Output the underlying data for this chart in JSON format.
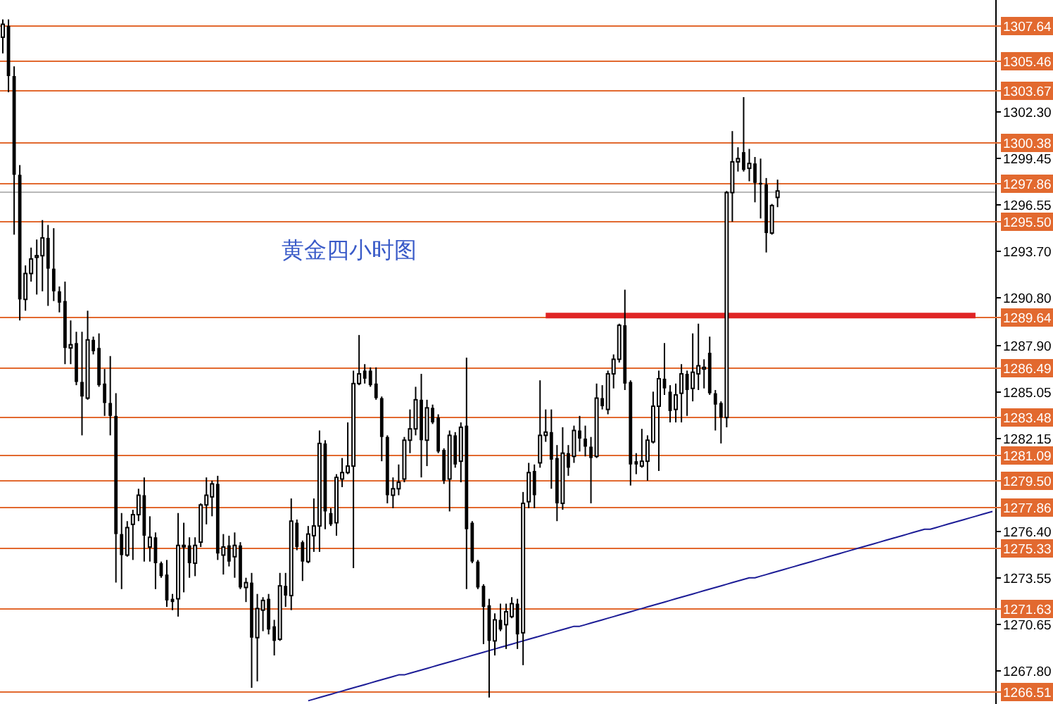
{
  "chart_data": {
    "type": "candlestick",
    "title": "黄金四小时图",
    "categories": [
      null,
      null,
      null,
      null,
      null,
      null,
      null,
      null,
      null,
      null,
      null,
      null,
      null,
      null,
      null,
      null,
      null,
      null,
      null,
      null,
      null,
      null,
      null,
      null,
      null,
      null,
      null,
      null,
      null,
      null,
      null,
      null,
      null,
      null,
      null,
      null,
      null,
      null,
      null,
      null,
      null,
      null,
      null,
      null,
      null,
      null,
      null,
      null,
      null,
      null,
      null,
      null,
      null,
      null,
      null,
      null,
      null,
      null,
      null,
      null,
      null,
      null,
      null,
      null,
      null,
      null,
      null,
      null,
      null,
      null,
      null,
      null,
      null,
      null,
      null,
      null,
      null,
      null,
      null,
      null,
      null,
      null,
      null,
      null,
      null,
      null,
      null,
      null,
      null,
      null,
      null,
      null,
      null,
      null,
      null,
      null,
      null,
      null,
      null,
      null,
      null,
      null,
      null,
      null,
      null,
      null,
      null,
      null,
      null,
      null,
      null,
      null,
      null,
      null,
      null,
      null,
      null,
      null,
      null,
      null,
      null,
      null,
      null,
      null,
      null,
      null,
      null,
      null,
      null,
      null,
      null,
      null,
      null,
      null,
      null,
      null,
      null,
      null,
      null,
      null,
      null,
      null,
      null,
      null,
      null,
      null,
      null,
      null,
      null,
      null,
      null,
      null,
      null,
      null,
      null,
      null,
      null,
      null,
      null,
      null,
      null,
      null,
      null,
      null,
      null,
      null,
      null,
      null,
      null,
      null,
      null,
      null,
      null,
      null,
      null,
      null
    ],
    "ohlc": [
      [
        1306.9,
        1308.0,
        1305.9,
        1307.7
      ],
      [
        1307.6,
        1308.0,
        1303.5,
        1304.5
      ],
      [
        1304.5,
        1305.1,
        1294.7,
        1298.4
      ],
      [
        1298.4,
        1299.0,
        1289.4,
        1290.7
      ],
      [
        1290.7,
        1292.8,
        1290.0,
        1292.3
      ],
      [
        1292.3,
        1293.9,
        1291.8,
        1293.2
      ],
      [
        1293.3,
        1294.4,
        1291.0,
        1293.4
      ],
      [
        1293.4,
        1295.6,
        1291.2,
        1294.5
      ],
      [
        1294.5,
        1295.3,
        1290.3,
        1292.6
      ],
      [
        1292.6,
        1295.1,
        1290.6,
        1291.2
      ],
      [
        1291.2,
        1291.5,
        1289.9,
        1290.5
      ],
      [
        1290.6,
        1291.8,
        1286.7,
        1287.7
      ],
      [
        1287.7,
        1289.4,
        1286.7,
        1287.9
      ],
      [
        1288.0,
        1288.7,
        1285.4,
        1285.6
      ],
      [
        1285.6,
        1288.7,
        1282.3,
        1284.7
      ],
      [
        1284.6,
        1290.0,
        1284.5,
        1288.2
      ],
      [
        1288.2,
        1288.4,
        1287.3,
        1287.5
      ],
      [
        1287.7,
        1288.6,
        1285.3,
        1285.4
      ],
      [
        1285.5,
        1286.4,
        1283.5,
        1284.3
      ],
      [
        1284.3,
        1287.2,
        1282.3,
        1283.5
      ],
      [
        1283.5,
        1284.9,
        1273.2,
        1276.2
      ],
      [
        1276.2,
        1277.5,
        1272.8,
        1274.9
      ],
      [
        1274.9,
        1277.0,
        1274.8,
        1276.6
      ],
      [
        1276.8,
        1277.7,
        1274.6,
        1277.4
      ],
      [
        1277.4,
        1279.0,
        1277.0,
        1278.6
      ],
      [
        1278.6,
        1279.7,
        1274.5,
        1276.1
      ],
      [
        1275.4,
        1277.3,
        1274.5,
        1276.0
      ],
      [
        1276.0,
        1276.3,
        1272.8,
        1274.4
      ],
      [
        1274.4,
        1274.5,
        1273.5,
        1273.6
      ],
      [
        1273.7,
        1274.6,
        1271.7,
        1272.1
      ],
      [
        1272.2,
        1272.5,
        1271.5,
        1272.0
      ],
      [
        1272.2,
        1277.5,
        1271.1,
        1275.5
      ],
      [
        1275.5,
        1276.9,
        1272.6,
        1275.5
      ],
      [
        1275.5,
        1276.0,
        1273.5,
        1274.4
      ],
      [
        1274.4,
        1276.0,
        1273.6,
        1275.5
      ],
      [
        1275.7,
        1278.1,
        1275.4,
        1278.0
      ],
      [
        1278.0,
        1279.7,
        1276.8,
        1278.6
      ],
      [
        1278.5,
        1279.5,
        1277.3,
        1279.3
      ],
      [
        1279.3,
        1279.8,
        1274.6,
        1275.0
      ],
      [
        1274.9,
        1276.2,
        1273.7,
        1275.4
      ],
      [
        1275.5,
        1276.1,
        1274.2,
        1274.5
      ],
      [
        1274.8,
        1276.3,
        1273.5,
        1275.5
      ],
      [
        1275.5,
        1275.7,
        1272.8,
        1272.9
      ],
      [
        1272.9,
        1273.5,
        1272.0,
        1273.2
      ],
      [
        1273.2,
        1273.8,
        1266.7,
        1269.8
      ],
      [
        1269.8,
        1272.5,
        1267.1,
        1271.6
      ],
      [
        1271.5,
        1272.3,
        1270.2,
        1272.1
      ],
      [
        1272.2,
        1272.5,
        1270.0,
        1270.3
      ],
      [
        1270.5,
        1270.9,
        1268.7,
        1269.6
      ],
      [
        1269.7,
        1273.8,
        1269.6,
        1273.0
      ],
      [
        1273.0,
        1273.8,
        1271.7,
        1272.4
      ],
      [
        1272.4,
        1278.4,
        1271.5,
        1277.0
      ],
      [
        1276.9,
        1277.1,
        1275.2,
        1275.4
      ],
      [
        1275.7,
        1275.8,
        1273.3,
        1274.5
      ],
      [
        1274.5,
        1276.7,
        1274.4,
        1276.2
      ],
      [
        1276.1,
        1278.4,
        1275.1,
        1276.7
      ],
      [
        1276.7,
        1282.6,
        1275.1,
        1281.8
      ],
      [
        1281.8,
        1282.0,
        1276.5,
        1277.6
      ],
      [
        1277.5,
        1277.8,
        1276.7,
        1276.8
      ],
      [
        1276.9,
        1279.9,
        1276.1,
        1279.7
      ],
      [
        1279.6,
        1280.9,
        1279.1,
        1280.0
      ],
      [
        1280.0,
        1283.1,
        1279.9,
        1280.4
      ],
      [
        1280.4,
        1286.3,
        1274.1,
        1285.5
      ],
      [
        1285.5,
        1288.5,
        1285.4,
        1286.1
      ],
      [
        1286.3,
        1286.7,
        1285.5,
        1285.8
      ],
      [
        1286.3,
        1286.5,
        1285.3,
        1285.4
      ],
      [
        1285.5,
        1286.5,
        1284.5,
        1284.6
      ],
      [
        1284.6,
        1284.7,
        1280.7,
        1282.2
      ],
      [
        1282.2,
        1282.3,
        1278.1,
        1278.6
      ],
      [
        1278.6,
        1279.7,
        1277.8,
        1279.0
      ],
      [
        1279.0,
        1280.5,
        1278.6,
        1279.4
      ],
      [
        1279.6,
        1282.2,
        1279.4,
        1282.0
      ],
      [
        1282.0,
        1283.9,
        1281.2,
        1282.7
      ],
      [
        1282.7,
        1285.3,
        1282.3,
        1284.5
      ],
      [
        1284.5,
        1286.1,
        1279.7,
        1282.0
      ],
      [
        1282.0,
        1284.5,
        1280.4,
        1284.0
      ],
      [
        1284.0,
        1284.2,
        1283.0,
        1283.1
      ],
      [
        1283.4,
        1283.6,
        1281.2,
        1281.3
      ],
      [
        1281.4,
        1281.5,
        1279.3,
        1279.5
      ],
      [
        1279.6,
        1282.6,
        1277.6,
        1282.3
      ],
      [
        1282.3,
        1282.5,
        1280.3,
        1280.5
      ],
      [
        1280.7,
        1283.1,
        1279.4,
        1282.8
      ],
      [
        1282.9,
        1287.1,
        1272.8,
        1276.5
      ],
      [
        1276.9,
        1277.0,
        1274.4,
        1274.5
      ],
      [
        1274.5,
        1274.6,
        1272.8,
        1272.9
      ],
      [
        1273.0,
        1273.1,
        1269.4,
        1271.7
      ],
      [
        1271.8,
        1272.2,
        1266.1,
        1269.6
      ],
      [
        1269.6,
        1271.3,
        1268.7,
        1270.9
      ],
      [
        1270.9,
        1271.9,
        1270.2,
        1270.3
      ],
      [
        1270.6,
        1271.9,
        1269.1,
        1271.4
      ],
      [
        1271.1,
        1272.3,
        1271.0,
        1271.9
      ],
      [
        1271.9,
        1272.2,
        1269.1,
        1270.0
      ],
      [
        1270.1,
        1278.8,
        1268.1,
        1278.1
      ],
      [
        1278.2,
        1280.6,
        1277.8,
        1280.0
      ],
      [
        1280.1,
        1280.5,
        1277.8,
        1278.6
      ],
      [
        1280.6,
        1285.7,
        1280.3,
        1282.3
      ],
      [
        1282.3,
        1283.9,
        1281.9,
        1282.5
      ],
      [
        1282.5,
        1283.9,
        1279.0,
        1280.8
      ],
      [
        1280.9,
        1281.7,
        1277.0,
        1278.1
      ],
      [
        1278.1,
        1282.8,
        1277.7,
        1281.2
      ],
      [
        1281.2,
        1281.7,
        1279.8,
        1280.3
      ],
      [
        1281.0,
        1282.9,
        1280.6,
        1282.6
      ],
      [
        1282.6,
        1283.5,
        1281.3,
        1282.1
      ],
      [
        1282.1,
        1282.9,
        1281.0,
        1281.6
      ],
      [
        1281.6,
        1282.2,
        1278.1,
        1280.9
      ],
      [
        1281.0,
        1285.5,
        1280.9,
        1284.6
      ],
      [
        1284.6,
        1285.4,
        1283.9,
        1284.1
      ],
      [
        1283.9,
        1286.3,
        1283.6,
        1286.1
      ],
      [
        1286.1,
        1287.3,
        1285.2,
        1287.0
      ],
      [
        1287.0,
        1289.2,
        1286.8,
        1289.1
      ],
      [
        1289.1,
        1291.3,
        1285.1,
        1285.5
      ],
      [
        1285.6,
        1285.7,
        1279.2,
        1280.5
      ],
      [
        1280.7,
        1281.2,
        1279.9,
        1280.5
      ],
      [
        1280.4,
        1282.7,
        1280.3,
        1280.7
      ],
      [
        1280.7,
        1282.3,
        1279.5,
        1282.0
      ],
      [
        1281.9,
        1285.0,
        1281.8,
        1284.1
      ],
      [
        1284.1,
        1286.3,
        1280.1,
        1285.8
      ],
      [
        1285.8,
        1288.0,
        1284.8,
        1285.2
      ],
      [
        1285.0,
        1285.4,
        1283.1,
        1283.8
      ],
      [
        1283.9,
        1285.5,
        1283.1,
        1284.8
      ],
      [
        1284.9,
        1286.7,
        1283.1,
        1286.1
      ],
      [
        1286.1,
        1286.3,
        1283.5,
        1285.1
      ],
      [
        1285.2,
        1288.6,
        1284.4,
        1286.2
      ],
      [
        1286.1,
        1289.2,
        1285.1,
        1286.6
      ],
      [
        1286.4,
        1287.0,
        1285.2,
        1286.5
      ],
      [
        1287.4,
        1288.4,
        1284.8,
        1284.9
      ],
      [
        1284.9,
        1285.1,
        1282.6,
        1284.2
      ],
      [
        1284.3,
        1284.4,
        1281.8,
        1283.4
      ],
      [
        1283.4,
        1297.4,
        1282.8,
        1297.3
      ],
      [
        1297.3,
        1301.1,
        1295.5,
        1299.2
      ],
      [
        1299.2,
        1300.1,
        1298.6,
        1299.4
      ],
      [
        1299.8,
        1303.2,
        1298.6,
        1298.7
      ],
      [
        1298.8,
        1300.0,
        1298.0,
        1299.1
      ],
      [
        1299.1,
        1299.5,
        1296.7,
        1297.9
      ],
      [
        1297.9,
        1299.4,
        1295.7,
        1297.8
      ],
      [
        1297.8,
        1298.2,
        1293.6,
        1294.8
      ],
      [
        1294.8,
        1296.6,
        1294.7,
        1296.5
      ],
      [
        1297.0,
        1298.1,
        1296.4,
        1297.4
      ],
      null,
      null,
      null,
      null,
      null,
      null,
      null,
      null,
      null,
      null,
      null,
      null,
      null,
      null,
      null,
      null,
      null,
      null,
      null,
      null,
      null,
      null,
      null,
      null,
      null,
      null,
      null,
      null,
      null,
      null,
      null,
      null,
      null,
      null,
      null,
      null,
      null,
      null
    ],
    "ylim": [
      1265.7,
      1309.2
    ],
    "yticks": [
      {
        "value": 1302.3,
        "label": "1302.30"
      },
      {
        "value": 1299.45,
        "label": "1299.45"
      },
      {
        "value": 1296.55,
        "label": "1296.55"
      },
      {
        "value": 1293.7,
        "label": "1293.70"
      },
      {
        "value": 1290.8,
        "label": "1290.80"
      },
      {
        "value": 1287.9,
        "label": "1287.90"
      },
      {
        "value": 1285.05,
        "label": "1285.05"
      },
      {
        "value": 1282.15,
        "label": "1282.15"
      },
      {
        "value": 1276.4,
        "label": "1276.40"
      },
      {
        "value": 1273.55,
        "label": "1273.55"
      },
      {
        "value": 1270.65,
        "label": "1270.65"
      },
      {
        "value": 1267.8,
        "label": "1267.80"
      }
    ],
    "tick_labels": "y",
    "ref_lines": [
      {
        "axis": "y",
        "value": 1307.64,
        "label": "1307.64",
        "color": "#e2692f"
      },
      {
        "axis": "y",
        "value": 1305.46,
        "label": "1305.46",
        "color": "#e2692f"
      },
      {
        "axis": "y",
        "value": 1303.67,
        "label": "1303.67",
        "color": "#e2692f"
      },
      {
        "axis": "y",
        "value": 1300.38,
        "label": "1300.38",
        "color": "#e2692f"
      },
      {
        "axis": "y",
        "value": 1297.86,
        "label": "1297.86",
        "color": "#e2692f"
      },
      {
        "axis": "y",
        "value": 1295.5,
        "label": "1295.50",
        "color": "#e2692f"
      },
      {
        "axis": "y",
        "value": 1289.64,
        "label": "1289.64",
        "color": "#e2692f"
      },
      {
        "axis": "y",
        "value": 1286.49,
        "label": "1286.49",
        "color": "#e2692f"
      },
      {
        "axis": "y",
        "value": 1283.48,
        "label": "1283.48",
        "color": "#e2692f"
      },
      {
        "axis": "y",
        "value": 1281.09,
        "label": "1281.09",
        "color": "#e2692f"
      },
      {
        "axis": "y",
        "value": 1279.5,
        "label": "1279.50",
        "color": "#e2692f"
      },
      {
        "axis": "y",
        "value": 1277.86,
        "label": "1277.86",
        "color": "#e2692f"
      },
      {
        "axis": "y",
        "value": 1275.33,
        "label": "1275.33",
        "color": "#e2692f"
      },
      {
        "axis": "y",
        "value": 1271.63,
        "label": "1271.63",
        "color": "#e2692f"
      },
      {
        "axis": "y",
        "value": 1266.51,
        "label": "1266.51",
        "color": "#e2692f"
      },
      {
        "axis": "y",
        "value": 1297.4,
        "color": "#b8b8b8"
      }
    ],
    "series": [
      {
        "type": "line",
        "color": "#1c1c96",
        "values": [
          null,
          null,
          null,
          null,
          null,
          null,
          null,
          null,
          null,
          null,
          null,
          null,
          null,
          null,
          null,
          null,
          null,
          null,
          null,
          null,
          null,
          null,
          null,
          null,
          null,
          null,
          null,
          null,
          null,
          null,
          null,
          null,
          null,
          null,
          null,
          null,
          null,
          null,
          null,
          null,
          null,
          null,
          null,
          null,
          null,
          null,
          null,
          null,
          null,
          null,
          null,
          null,
          null,
          null,
          1265.9,
          1266.0,
          1266.1,
          1266.2,
          1266.3,
          1266.4,
          1266.5,
          1266.6,
          1266.7,
          1266.8,
          1266.9,
          1267.0,
          1267.1,
          1267.2,
          1267.3,
          1267.4,
          1267.5,
          1267.5,
          1267.6,
          1267.7,
          1267.8,
          1267.9,
          1268.0,
          1268.1,
          1268.2,
          1268.3,
          1268.4,
          1268.5,
          1268.6,
          1268.7,
          1268.8,
          1268.9,
          1269.0,
          1269.1,
          1269.2,
          1269.3,
          1269.4,
          1269.5,
          1269.6,
          1269.7,
          1269.8,
          1269.9,
          1270.0,
          1270.1,
          1270.2,
          1270.3,
          1270.4,
          1270.5,
          1270.5,
          1270.6,
          1270.7,
          1270.8,
          1270.9,
          1271.0,
          1271.1,
          1271.2,
          1271.3,
          1271.4,
          1271.5,
          1271.6,
          1271.7,
          1271.8,
          1271.9,
          1272.0,
          1272.1,
          1272.2,
          1272.3,
          1272.4,
          1272.5,
          1272.6,
          1272.7,
          1272.8,
          1272.9,
          1273.0,
          1273.1,
          1273.2,
          1273.3,
          1273.4,
          1273.5,
          1273.5,
          1273.6,
          1273.7,
          1273.8,
          1273.9,
          1274.0,
          1274.1,
          1274.2,
          1274.3,
          1274.4,
          1274.5,
          1274.6,
          1274.7,
          1274.8,
          1274.9,
          1275.0,
          1275.1,
          1275.2,
          1275.3,
          1275.4,
          1275.5,
          1275.6,
          1275.7,
          1275.8,
          1275.9,
          1276.0,
          1276.1,
          1276.2,
          1276.3,
          1276.4,
          1276.5,
          1276.5,
          1276.6,
          1276.7,
          1276.8,
          1276.9,
          1277.0,
          1277.1,
          1277.2,
          1277.3,
          1277.4,
          1277.5,
          1277.6
        ]
      },
      {
        "type": "line",
        "color": "#e02424",
        "values": [
          null,
          null,
          null,
          null,
          null,
          null,
          null,
          null,
          null,
          null,
          null,
          null,
          null,
          null,
          null,
          null,
          null,
          null,
          null,
          null,
          null,
          null,
          null,
          null,
          null,
          null,
          null,
          null,
          null,
          null,
          null,
          null,
          null,
          null,
          null,
          null,
          null,
          null,
          null,
          null,
          null,
          null,
          null,
          null,
          null,
          null,
          null,
          null,
          null,
          null,
          null,
          null,
          null,
          null,
          null,
          null,
          null,
          null,
          null,
          null,
          null,
          null,
          null,
          null,
          null,
          null,
          null,
          null,
          null,
          null,
          null,
          null,
          null,
          null,
          null,
          null,
          null,
          null,
          null,
          null,
          null,
          null,
          null,
          null,
          null,
          null,
          null,
          null,
          null,
          null,
          null,
          null,
          null,
          null,
          null,
          null,
          1289.7,
          1289.7,
          1289.7,
          1289.7,
          1289.7,
          1289.7,
          1289.7,
          1289.7,
          1289.7,
          1289.7,
          1289.7,
          1289.7,
          1289.7,
          1289.7,
          1289.7,
          1289.7,
          1289.7,
          1289.7,
          1289.7,
          1289.7,
          1289.7,
          1289.7,
          1289.7,
          1289.7,
          1289.7,
          1289.7,
          1289.7,
          1289.7,
          1289.7,
          1289.7,
          1289.7,
          1289.7,
          1289.7,
          1289.7,
          1289.7,
          1289.7,
          1289.7,
          1289.7,
          1289.7,
          1289.7,
          1289.7,
          1289.7,
          1289.7,
          1289.7,
          1289.7,
          1289.7,
          1289.7,
          1289.7,
          1289.7,
          1289.7,
          1289.7,
          1289.7,
          1289.7,
          1289.7,
          1289.7,
          1289.7,
          1289.7,
          1289.7,
          1289.7,
          1289.7,
          1289.7,
          1289.7,
          1289.7,
          1289.7,
          1289.7,
          1289.7,
          1289.7,
          1289.7,
          1289.7,
          1289.7,
          1289.7,
          1289.7,
          1289.7,
          1289.7,
          1289.7,
          1289.7,
          1289.7,
          null,
          null,
          null
        ]
      }
    ]
  }
}
